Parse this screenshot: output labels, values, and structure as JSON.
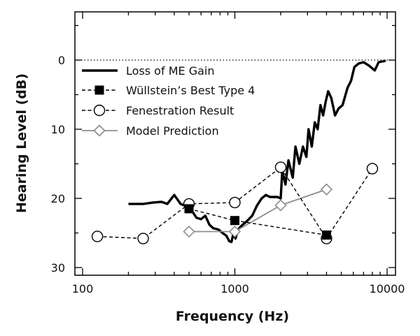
{
  "chart_data": {
    "type": "line",
    "xlabel": "Frequency (Hz)",
    "ylabel": "Hearing Level (dB)",
    "x_scale": "log",
    "xlim": [
      100,
      10000
    ],
    "ylim": [
      -7,
      32
    ],
    "y_inverted": true,
    "x_tick_labels": [
      "100",
      "1000",
      "10000"
    ],
    "y_tick_labels": [
      "0",
      "10",
      "20",
      "30"
    ],
    "grid": false,
    "reference_line": {
      "y": 0,
      "style": "dotted"
    },
    "legend_position": "top-left",
    "series": [
      {
        "name": "Loss of ME Gain",
        "style": "solid-thick",
        "color": "#000000",
        "marker": "none",
        "points": [
          [
            200,
            20.8
          ],
          [
            250,
            20.8
          ],
          [
            290,
            20.6
          ],
          [
            330,
            20.5
          ],
          [
            360,
            20.8
          ],
          [
            400,
            19.5
          ],
          [
            440,
            20.8
          ],
          [
            490,
            21.2
          ],
          [
            530,
            22.0
          ],
          [
            560,
            22.8
          ],
          [
            600,
            23.0
          ],
          [
            640,
            22.5
          ],
          [
            680,
            23.8
          ],
          [
            720,
            24.3
          ],
          [
            780,
            24.5
          ],
          [
            830,
            25.0
          ],
          [
            880,
            25.4
          ],
          [
            920,
            26.2
          ],
          [
            950,
            26.3
          ],
          [
            980,
            25.0
          ],
          [
            1010,
            25.8
          ],
          [
            1050,
            24.5
          ],
          [
            1100,
            24.0
          ],
          [
            1200,
            23.3
          ],
          [
            1300,
            22.5
          ],
          [
            1400,
            21.0
          ],
          [
            1500,
            20.0
          ],
          [
            1600,
            19.5
          ],
          [
            1700,
            19.8
          ],
          [
            1900,
            19.8
          ],
          [
            2000,
            20.0
          ],
          [
            2050,
            16.0
          ],
          [
            2150,
            18.0
          ],
          [
            2250,
            14.5
          ],
          [
            2400,
            17.0
          ],
          [
            2500,
            12.5
          ],
          [
            2650,
            15.0
          ],
          [
            2800,
            12.5
          ],
          [
            2950,
            14.0
          ],
          [
            3050,
            10.0
          ],
          [
            3200,
            12.5
          ],
          [
            3350,
            9.0
          ],
          [
            3500,
            10.0
          ],
          [
            3650,
            6.5
          ],
          [
            3800,
            8.0
          ],
          [
            3950,
            6.0
          ],
          [
            4100,
            4.5
          ],
          [
            4300,
            5.5
          ],
          [
            4550,
            8.0
          ],
          [
            4800,
            7.0
          ],
          [
            5100,
            6.5
          ],
          [
            5500,
            4.0
          ],
          [
            5800,
            3.0
          ],
          [
            6100,
            1.0
          ],
          [
            6500,
            0.5
          ],
          [
            7000,
            0.3
          ],
          [
            7600,
            0.8
          ],
          [
            8300,
            1.5
          ],
          [
            8800,
            0.3
          ],
          [
            9300,
            0.2
          ],
          [
            9800,
            0.1
          ]
        ]
      },
      {
        "name": "Wüllstein’s Best Type 4",
        "style": "dashed",
        "color": "#000000",
        "marker": "filled-square",
        "points": [
          [
            500,
            21.5
          ],
          [
            1000,
            23.2
          ],
          [
            4000,
            25.3
          ]
        ]
      },
      {
        "name": "Fenestration Result",
        "style": "dashed",
        "color": "#000000",
        "marker": "open-circle",
        "points": [
          [
            125,
            25.5
          ],
          [
            250,
            25.8
          ],
          [
            500,
            20.8
          ],
          [
            1000,
            20.6
          ],
          [
            2000,
            15.5
          ],
          [
            4000,
            25.8
          ],
          [
            8000,
            15.7
          ]
        ]
      },
      {
        "name": "Model Prediction",
        "style": "solid-thin",
        "color": "#8c8c8c",
        "marker": "open-diamond",
        "points": [
          [
            500,
            24.8
          ],
          [
            1000,
            24.8
          ],
          [
            2000,
            21.0
          ],
          [
            4000,
            18.7
          ]
        ]
      }
    ]
  }
}
